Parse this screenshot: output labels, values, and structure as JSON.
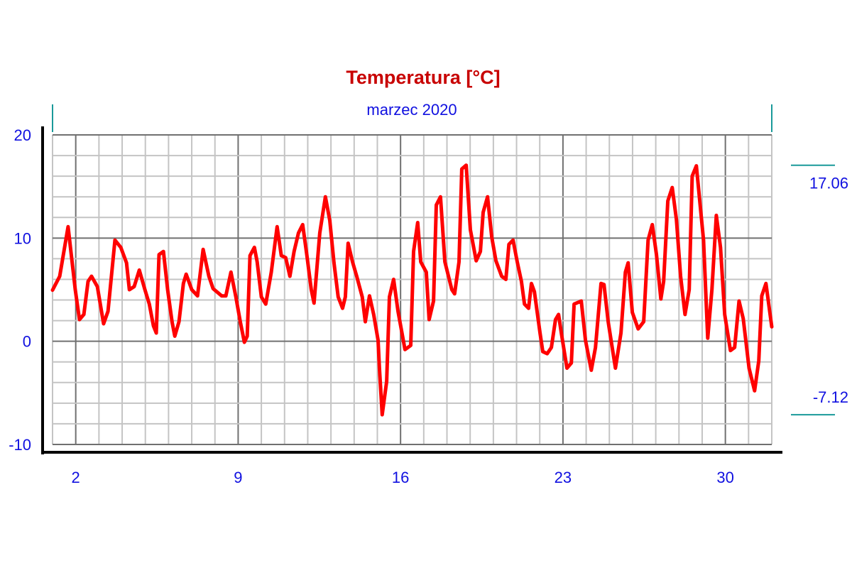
{
  "chart_data": {
    "type": "line",
    "title": "Temperatura [°C]",
    "subtitle": "marzec 2020",
    "xlabel": "",
    "ylabel": "",
    "xlim": [
      1,
      32
    ],
    "ylim": [
      -10,
      20
    ],
    "x_ticks": [
      2,
      9,
      16,
      23,
      30
    ],
    "x_tick_labels": [
      "2",
      "9",
      "16",
      "23",
      "30"
    ],
    "y_ticks": [
      20,
      10,
      0,
      -10
    ],
    "y_tick_labels": [
      "20",
      "10",
      "0",
      "-10"
    ],
    "grid": true,
    "x_minor_step": 1,
    "y_minor_step": 2,
    "max_label": "17.06",
    "min_label": "-7.12",
    "max_value": 17.06,
    "min_value": -7.12,
    "line_color": "#ff0000",
    "series": [
      {
        "name": "Temperatura",
        "x": [
          1.0,
          1.31,
          1.67,
          1.98,
          2.16,
          2.35,
          2.53,
          2.68,
          2.93,
          3.2,
          3.39,
          3.69,
          3.94,
          4.19,
          4.31,
          4.52,
          4.74,
          4.98,
          5.17,
          5.35,
          5.47,
          5.59,
          5.78,
          5.96,
          6.15,
          6.27,
          6.45,
          6.64,
          6.76,
          7.0,
          7.25,
          7.49,
          7.74,
          7.92,
          8.29,
          8.47,
          8.69,
          8.9,
          9.09,
          9.27,
          9.39,
          9.51,
          9.7,
          9.82,
          10.0,
          10.19,
          10.43,
          10.68,
          10.86,
          11.05,
          11.23,
          11.41,
          11.6,
          11.78,
          11.96,
          12.15,
          12.27,
          12.52,
          12.76,
          12.95,
          13.13,
          13.31,
          13.5,
          13.62,
          13.74,
          13.93,
          14.11,
          14.35,
          14.48,
          14.66,
          14.84,
          15.03,
          15.09,
          15.21,
          15.4,
          15.52,
          15.7,
          15.89,
          16.19,
          16.44,
          16.56,
          16.74,
          16.87,
          17.11,
          17.23,
          17.42,
          17.54,
          17.72,
          17.91,
          18.21,
          18.33,
          18.52,
          18.64,
          18.83,
          19.01,
          19.26,
          19.44,
          19.56,
          19.75,
          19.93,
          20.11,
          20.36,
          20.54,
          20.67,
          20.85,
          21.03,
          21.21,
          21.34,
          21.52,
          21.64,
          21.77,
          22.01,
          22.13,
          22.32,
          22.5,
          22.68,
          22.81,
          22.93,
          23.17,
          23.36,
          23.48,
          23.79,
          23.97,
          24.22,
          24.4,
          24.64,
          24.77,
          24.95,
          25.26,
          25.5,
          25.69,
          25.81,
          25.99,
          26.24,
          26.48,
          26.67,
          26.85,
          27.03,
          27.22,
          27.34,
          27.52,
          27.71,
          27.89,
          28.07,
          28.26,
          28.44,
          28.57,
          28.75,
          29.06,
          29.24,
          29.42,
          29.61,
          29.79,
          29.97,
          30.22,
          30.4,
          30.59,
          30.77,
          31.02,
          31.26,
          31.44,
          31.57,
          31.75,
          32.0
        ],
        "y": [
          4.96,
          6.3,
          11.1,
          5.0,
          2.1,
          2.6,
          5.8,
          6.3,
          5.3,
          1.7,
          2.9,
          9.8,
          9.1,
          7.6,
          5.0,
          5.3,
          6.9,
          5.0,
          3.6,
          1.5,
          0.8,
          8.4,
          8.7,
          5.0,
          1.9,
          0.5,
          1.9,
          5.6,
          6.5,
          5.0,
          4.4,
          8.9,
          6.3,
          5.1,
          4.4,
          4.4,
          6.7,
          4.3,
          1.9,
          -0.1,
          0.5,
          8.3,
          9.1,
          7.7,
          4.3,
          3.6,
          6.7,
          11.1,
          8.3,
          8.1,
          6.3,
          8.7,
          10.5,
          11.3,
          8.4,
          5.0,
          3.7,
          10.5,
          14.0,
          11.7,
          7.6,
          4.3,
          3.2,
          4.3,
          9.5,
          7.7,
          6.3,
          4.3,
          1.9,
          4.4,
          2.6,
          0.1,
          -2.6,
          -7.12,
          -3.9,
          4.3,
          6.0,
          2.9,
          -0.8,
          -0.4,
          8.7,
          11.5,
          7.7,
          6.7,
          2.1,
          3.9,
          13.2,
          14.0,
          7.7,
          5.0,
          4.6,
          7.7,
          16.7,
          17.06,
          10.8,
          7.8,
          8.7,
          12.5,
          14.0,
          10.1,
          7.8,
          6.3,
          6.0,
          9.4,
          9.8,
          7.7,
          5.8,
          3.6,
          3.2,
          5.6,
          4.8,
          0.8,
          -1.0,
          -1.2,
          -0.6,
          2.1,
          2.6,
          0.8,
          -2.6,
          -2.1,
          3.6,
          3.9,
          0.1,
          -2.8,
          -0.6,
          5.6,
          5.5,
          1.9,
          -2.6,
          0.8,
          6.7,
          7.6,
          2.8,
          1.2,
          1.9,
          9.8,
          11.3,
          8.4,
          4.1,
          5.8,
          13.6,
          14.9,
          11.8,
          6.3,
          2.6,
          5.0,
          16.0,
          17.0,
          9.8,
          0.3,
          5.0,
          12.2,
          9.1,
          2.6,
          -0.9,
          -0.6,
          3.9,
          2.2,
          -2.6,
          -4.8,
          -1.9,
          4.4,
          5.6,
          1.4
        ]
      }
    ]
  }
}
